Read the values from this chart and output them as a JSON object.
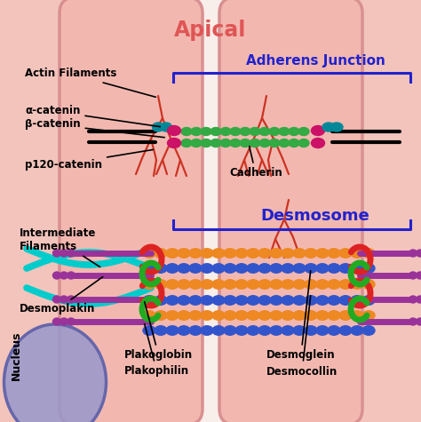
{
  "bg_color": "#f2c4bc",
  "cell_fill": "#f0b8b0",
  "cell_edge": "#d8908a",
  "gap_fill": "#f5e8e4",
  "title": "Apical",
  "title_color": "#e05555",
  "adherens_label": "Adherens Junction",
  "desmosome_label": "Desmosome",
  "blue_label": "#2222cc",
  "nucleus_label": "Nucleus",
  "nucleus_fill": "#9898cc",
  "nucleus_edge": "#6666aa",
  "actin_color": "#cc3322",
  "cyan_filament": "#00cccc",
  "green_cad": "#33aa44",
  "magenta_cad": "#cc1166",
  "teal_cat": "#008899",
  "orange_desm": "#ee8822",
  "blue_desm": "#3355cc",
  "purple_plak": "#993399",
  "red_hook": "#dd2222",
  "green_hook": "#22aa22",
  "black": "#000000",
  "white": "#ffffff"
}
